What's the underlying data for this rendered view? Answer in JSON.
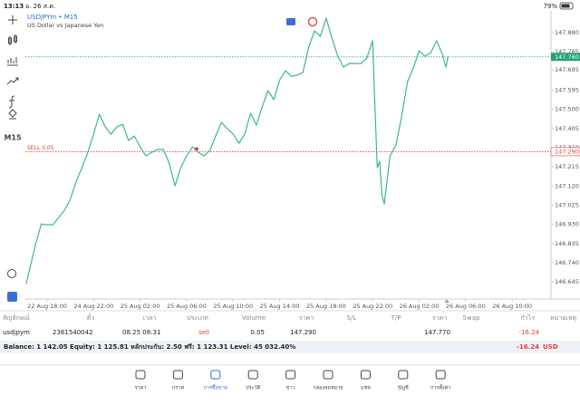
{
  "status_bar": {
    "time": "13:13",
    "date": "อ. 26 ส.ค.",
    "battery": "79%"
  },
  "toolbar": {
    "timeframe": "M15"
  },
  "chart_data": {
    "type": "line",
    "title": "USDJPYm • M15",
    "subtitle": "US Dollar vs Japanese Yen",
    "color": "#3cb88a",
    "x": [
      -1.8,
      -1.5,
      -1,
      -0.5,
      0,
      0.5,
      1,
      1.5,
      2,
      2.5,
      3,
      3.5,
      4,
      4.5,
      5,
      5.5,
      6,
      6.5,
      7,
      7.5,
      8,
      8.5,
      9,
      9.5,
      10,
      10.5,
      11,
      11.5,
      12,
      12.5,
      13,
      13.5,
      14,
      14.5,
      15,
      15.5,
      16,
      16.5,
      17,
      17.5,
      18,
      18.5,
      19,
      19.5,
      20,
      20.5,
      21,
      21.5,
      22,
      22.5,
      23,
      23.5,
      24,
      24.5,
      25,
      25.5,
      26,
      26.5,
      27,
      27.5,
      28,
      28.2,
      28.4,
      28.6,
      28.8,
      29,
      29.5,
      30,
      30.5,
      31,
      31.5,
      32,
      32.5,
      33,
      33.5,
      34,
      34.3,
      34.5
    ],
    "values": [
      146.636,
      146.708,
      146.829,
      146.932,
      146.928,
      146.928,
      146.964,
      147.0,
      147.054,
      147.143,
      147.211,
      147.287,
      147.377,
      147.476,
      147.413,
      147.377,
      147.413,
      147.426,
      147.346,
      147.368,
      147.314,
      147.269,
      147.287,
      147.301,
      147.301,
      147.233,
      147.121,
      147.211,
      147.269,
      147.314,
      147.287,
      147.269,
      147.296,
      147.368,
      147.435,
      147.404,
      147.377,
      147.332,
      147.377,
      147.48,
      147.422,
      147.512,
      147.593,
      147.548,
      147.646,
      147.691,
      147.664,
      147.669,
      147.682,
      147.808,
      147.889,
      147.862,
      147.952,
      147.853,
      147.763,
      147.709,
      147.727,
      147.727,
      147.727,
      147.754,
      147.84,
      147.503,
      147.211,
      147.242,
      147.076,
      147.031,
      147.269,
      147.323,
      147.467,
      147.637,
      147.705,
      147.79,
      147.763,
      147.781,
      147.84,
      147.772,
      147.709,
      147.763
    ],
    "xlim": [
      -1.87,
      43.34
    ],
    "ylim": [
      146.56,
      147.988
    ],
    "xticks": [
      {
        "value": 0,
        "label": "22 Aug 18:00"
      },
      {
        "value": 4,
        "label": "24 Aug 22:00"
      },
      {
        "value": 8,
        "label": "25 Aug 02:00"
      },
      {
        "value": 12,
        "label": "25 Aug 06:00"
      },
      {
        "value": 16,
        "label": "25 Aug 10:00"
      },
      {
        "value": 20,
        "label": "25 Aug 14:00"
      },
      {
        "value": 24,
        "label": "25 Aug 18:00"
      },
      {
        "value": 28,
        "label": "25 Aug 22:00"
      },
      {
        "value": 32,
        "label": "26 Aug 02:00"
      },
      {
        "value": 36,
        "label": "26 Aug 06:00"
      },
      {
        "value": 40,
        "label": "26 Aug 10:00"
      }
    ],
    "yticks": [
      {
        "value": 147.88,
        "label": "147.880"
      },
      {
        "value": 147.785,
        "label": "147.785"
      },
      {
        "value": 147.695,
        "label": "147.695"
      },
      {
        "value": 147.595,
        "label": "147.595"
      },
      {
        "value": 147.5,
        "label": "147.500"
      },
      {
        "value": 147.405,
        "label": "147.405"
      },
      {
        "value": 147.31,
        "label": "147.310"
      },
      {
        "value": 147.215,
        "label": "147.215"
      },
      {
        "value": 147.12,
        "label": "147.120"
      },
      {
        "value": 147.025,
        "label": "147.025"
      },
      {
        "value": 146.93,
        "label": "146.930"
      },
      {
        "value": 146.835,
        "label": "146.835"
      },
      {
        "value": 146.74,
        "label": "146.740"
      },
      {
        "value": 146.645,
        "label": "146.645"
      }
    ],
    "bid_line": {
      "value": 147.76,
      "label": "147.760",
      "color": "#26a17b"
    },
    "order": {
      "text": "SELL 0.05",
      "price": 147.29,
      "price_label": "147.290",
      "x": 12.86,
      "color": "#e04040"
    }
  },
  "positions": {
    "headers": [
      "สัญลักษณ์",
      "ตั๋ว",
      "เวลา",
      "ประเภท",
      "Volume",
      "ราคา",
      "S/L",
      "T/P",
      "ราคา",
      "Swap",
      "กำไร",
      "หมายเหตุ"
    ],
    "rows": [
      {
        "symbol": "usdjpym",
        "ticket": "2361540042",
        "time": "08.25 08:31",
        "type": "sell",
        "volume": "0.05",
        "open_price": "147.290",
        "current_price": "147.770",
        "profit": "-16.24"
      }
    ]
  },
  "account": {
    "summary": "Balance: 1 142.05 Equity: 1 125.81 หลักประกัน: 2.50 ฟรี: 1 123.31 Level: 45 032.40%",
    "profit": "-16.24",
    "currency": "USD"
  },
  "nav": [
    "ราคา",
    "กราฟ",
    "การซื้อขาย",
    "ประวัติ",
    "ข่าว",
    "กล่องจดหมาย",
    "แชท",
    "บัญชี",
    "การตั้งค่า"
  ]
}
